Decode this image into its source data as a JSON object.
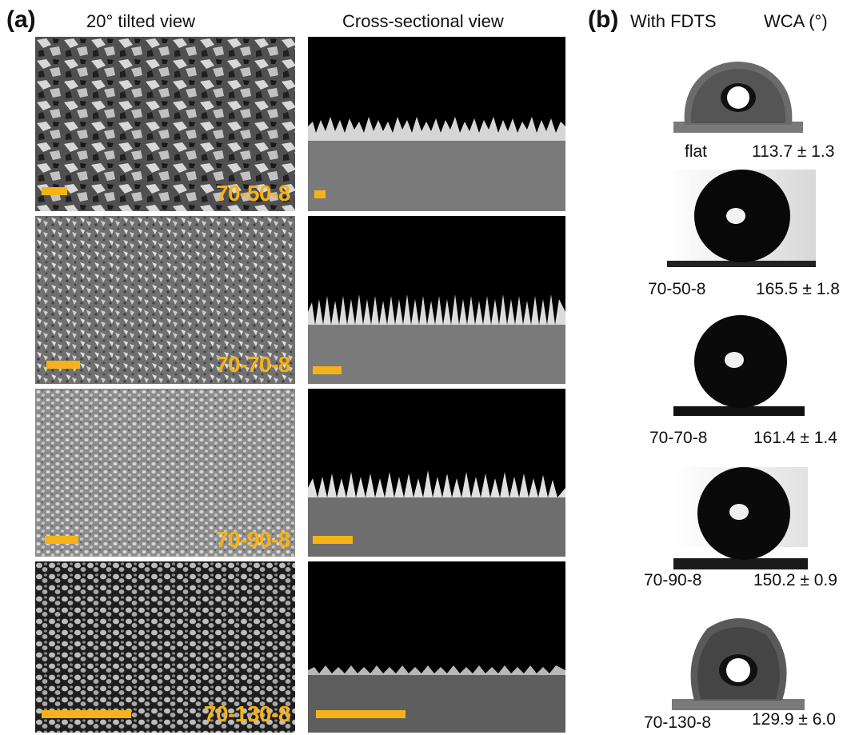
{
  "panel_a": {
    "letter": "(a)",
    "col_tilted": "20° tilted view",
    "col_cross": "Cross-sectional view"
  },
  "panel_b": {
    "letter": "(b)",
    "col_with": "With FDTS",
    "col_wca": "WCA (°)"
  },
  "colors": {
    "label": "#f5b319",
    "scalebar": "#f5b319"
  },
  "rows": [
    {
      "sample": "70-50-8"
    },
    {
      "sample": "70-70-8"
    },
    {
      "sample": "70-90-8"
    },
    {
      "sample": "70-130-8"
    }
  ],
  "drops": [
    {
      "sample": "flat",
      "wca": "113.7 ± 1.3"
    },
    {
      "sample": "70-50-8",
      "wca": "165.5 ± 1.8"
    },
    {
      "sample": "70-70-8",
      "wca": "161.4 ± 1.4"
    },
    {
      "sample": "70-90-8",
      "wca": "150.2 ± 0.9"
    },
    {
      "sample": "70-130-8",
      "wca": "129.9 ± 6.0"
    }
  ]
}
